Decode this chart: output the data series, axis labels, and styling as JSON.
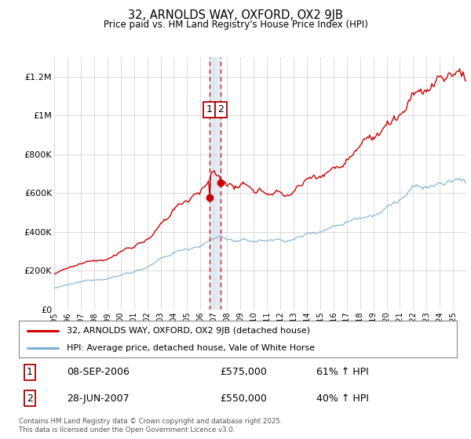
{
  "title": "32, ARNOLDS WAY, OXFORD, OX2 9JB",
  "subtitle": "Price paid vs. HM Land Registry's House Price Index (HPI)",
  "legend_line1": "32, ARNOLDS WAY, OXFORD, OX2 9JB (detached house)",
  "legend_line2": "HPI: Average price, detached house, Vale of White Horse",
  "transaction1_date": "08-SEP-2006",
  "transaction1_price": "£575,000",
  "transaction1_hpi": "61% ↑ HPI",
  "transaction2_date": "28-JUN-2007",
  "transaction2_price": "£550,000",
  "transaction2_hpi": "40% ↑ HPI",
  "copyright": "Contains HM Land Registry data © Crown copyright and database right 2025.\nThis data is licensed under the Open Government Licence v3.0.",
  "hpi_color": "#7ab0d4",
  "price_color": "#cc0000",
  "dashed_line_color": "#cc0000",
  "shade_color": "#c8d8e8",
  "ylim": [
    0,
    1300000
  ],
  "yticks": [
    0,
    200000,
    400000,
    600000,
    800000,
    1000000,
    1200000
  ],
  "ytick_labels": [
    "£0",
    "£200K",
    "£400K",
    "£600K",
    "£800K",
    "£1M",
    "£1.2M"
  ],
  "transaction1_year": 2006.69,
  "transaction2_year": 2007.49,
  "transaction1_price_val": 575000,
  "transaction2_price_val": 550000,
  "background_color": "#ffffff",
  "grid_color": "#cccccc"
}
